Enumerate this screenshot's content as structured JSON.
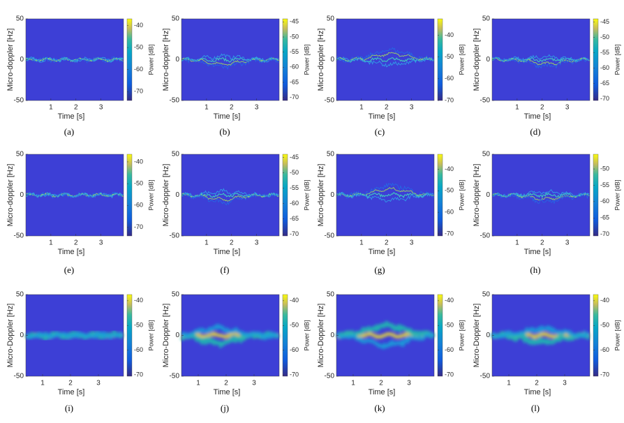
{
  "chart_data": [
    {
      "type": "spectrogram",
      "caption": "(a)",
      "xlabel": "Time [s]",
      "ylabel": "Micro-doppler [Hz]",
      "colorbar_label": "Power [dB]",
      "xlim": [
        0,
        3.9
      ],
      "xticks": [
        1,
        2,
        3
      ],
      "ylim": [
        -50,
        50
      ],
      "yticks": [
        -50,
        0,
        50
      ],
      "clim": [
        -74,
        -37
      ],
      "cticks": [
        -70,
        -60,
        -50,
        -40
      ]
    },
    {
      "type": "spectrogram",
      "caption": "(b)",
      "xlabel": "Time [s]",
      "ylabel": "Micro-doppler [Hz]",
      "colorbar_label": "Power [dB]",
      "xlim": [
        0,
        3.9
      ],
      "xticks": [
        1,
        2,
        3
      ],
      "ylim": [
        -50,
        50
      ],
      "yticks": [
        -50,
        0,
        50
      ],
      "clim": [
        -71,
        -44
      ],
      "cticks": [
        -70,
        -65,
        -60,
        -55,
        -50,
        -45
      ]
    },
    {
      "type": "spectrogram",
      "caption": "(c)",
      "xlabel": "Time [s]",
      "ylabel": "Micro-doppler [Hz]",
      "colorbar_label": "Power [dB]",
      "xlim": [
        0,
        3.9
      ],
      "xticks": [
        1,
        2,
        3
      ],
      "ylim": [
        -50,
        50
      ],
      "yticks": [
        -50,
        0,
        50
      ],
      "clim": [
        -70,
        -32.5
      ],
      "cticks": [
        -70,
        -60,
        -50,
        -40
      ]
    },
    {
      "type": "spectrogram",
      "caption": "(d)",
      "xlabel": "Time [s]",
      "ylabel": "Micro-doppler [Hz]",
      "colorbar_label": "Power [dB]",
      "xlim": [
        0,
        3.9
      ],
      "xticks": [
        1,
        2,
        3
      ],
      "ylim": [
        -50,
        50
      ],
      "yticks": [
        -50,
        0,
        50
      ],
      "clim": [
        -70.5,
        -44
      ],
      "cticks": [
        -70,
        -65,
        -60,
        -55,
        -50,
        -45
      ]
    },
    {
      "type": "spectrogram",
      "caption": "(e)",
      "xlabel": "Time [s]",
      "ylabel": "Micro-doppler [Hz]",
      "colorbar_label": "Power [dB]",
      "xlim": [
        0,
        3.9
      ],
      "xticks": [
        1,
        2,
        3
      ],
      "ylim": [
        -50,
        50
      ],
      "yticks": [
        -50,
        0,
        50
      ],
      "clim": [
        -74,
        -36.5
      ],
      "cticks": [
        -70,
        -60,
        -50,
        -40
      ]
    },
    {
      "type": "spectrogram",
      "caption": "(f)",
      "xlabel": "Time [s]",
      "ylabel": "Micro-doppler [Hz]",
      "colorbar_label": "Power [dB]",
      "xlim": [
        0,
        3.9
      ],
      "xticks": [
        1,
        2,
        3
      ],
      "ylim": [
        -50,
        50
      ],
      "yticks": [
        -50,
        0,
        50
      ],
      "clim": [
        -70.5,
        -44
      ],
      "cticks": [
        -70,
        -65,
        -60,
        -55,
        -50,
        -45
      ]
    },
    {
      "type": "spectrogram",
      "caption": "(g)",
      "xlabel": "Time [s]",
      "ylabel": "Micro-doppler [Hz]",
      "colorbar_label": "Power [dB]",
      "xlim": [
        0,
        3.9
      ],
      "xticks": [
        1,
        2,
        3
      ],
      "ylim": [
        -50,
        50
      ],
      "yticks": [
        -50,
        0,
        50
      ],
      "clim": [
        -71,
        -33
      ],
      "cticks": [
        -70,
        -60,
        -50,
        -40
      ]
    },
    {
      "type": "spectrogram",
      "caption": "(h)",
      "xlabel": "Time [s]",
      "ylabel": "Micro-doppler [Hz]",
      "colorbar_label": "Power [dB]",
      "xlim": [
        0,
        3.9
      ],
      "xticks": [
        1,
        2,
        3
      ],
      "ylim": [
        -50,
        50
      ],
      "yticks": [
        -50,
        0,
        50
      ],
      "clim": [
        -70.5,
        -45.5
      ],
      "cticks": [
        -70,
        -65,
        -60,
        -55,
        -50
      ]
    },
    {
      "type": "spectrogram",
      "caption": "(i)",
      "xlabel": "Time [s]",
      "ylabel": "Micro-Doppler [Hz]",
      "colorbar_label": "Power [dB]",
      "xlim": [
        0.4,
        3.9
      ],
      "xticks": [
        1,
        2,
        3
      ],
      "ylim": [
        -50,
        50
      ],
      "yticks": [
        -50,
        0,
        50
      ],
      "clim": [
        -70.5,
        -37.5
      ],
      "cticks": [
        -70,
        -60,
        -50,
        -40
      ]
    },
    {
      "type": "spectrogram",
      "caption": "(j)",
      "xlabel": "Time [s]",
      "ylabel": "Micro-Doppler [Hz]",
      "colorbar_label": "Power [dB]",
      "xlim": [
        0.4,
        3.9
      ],
      "xticks": [
        1,
        2,
        3
      ],
      "ylim": [
        -50,
        50
      ],
      "yticks": [
        -50,
        0,
        50
      ],
      "clim": [
        -70.5,
        -37.5
      ],
      "cticks": [
        -70,
        -60,
        -50,
        -40
      ]
    },
    {
      "type": "spectrogram",
      "caption": "(k)",
      "xlabel": "Time [s]",
      "ylabel": "Micro-Doppler [Hz]",
      "colorbar_label": "Power [dB]",
      "xlim": [
        0.4,
        3.9
      ],
      "xticks": [
        1,
        2,
        3
      ],
      "ylim": [
        -50,
        50
      ],
      "yticks": [
        -50,
        0,
        50
      ],
      "clim": [
        -70.5,
        -37.5
      ],
      "cticks": [
        -70,
        -60,
        -50,
        -40
      ]
    },
    {
      "type": "spectrogram",
      "caption": "(l)",
      "xlabel": "Time [s]",
      "ylabel": "Micro-Doppler [Hz]",
      "colorbar_label": "Power [dB]",
      "xlim": [
        0.4,
        3.9
      ],
      "xticks": [
        1,
        2,
        3
      ],
      "ylim": [
        -50,
        50
      ],
      "yticks": [
        -50,
        0,
        50
      ],
      "clim": [
        -70.5,
        -37.5
      ],
      "cticks": [
        -70,
        -60,
        -50,
        -40
      ]
    }
  ]
}
